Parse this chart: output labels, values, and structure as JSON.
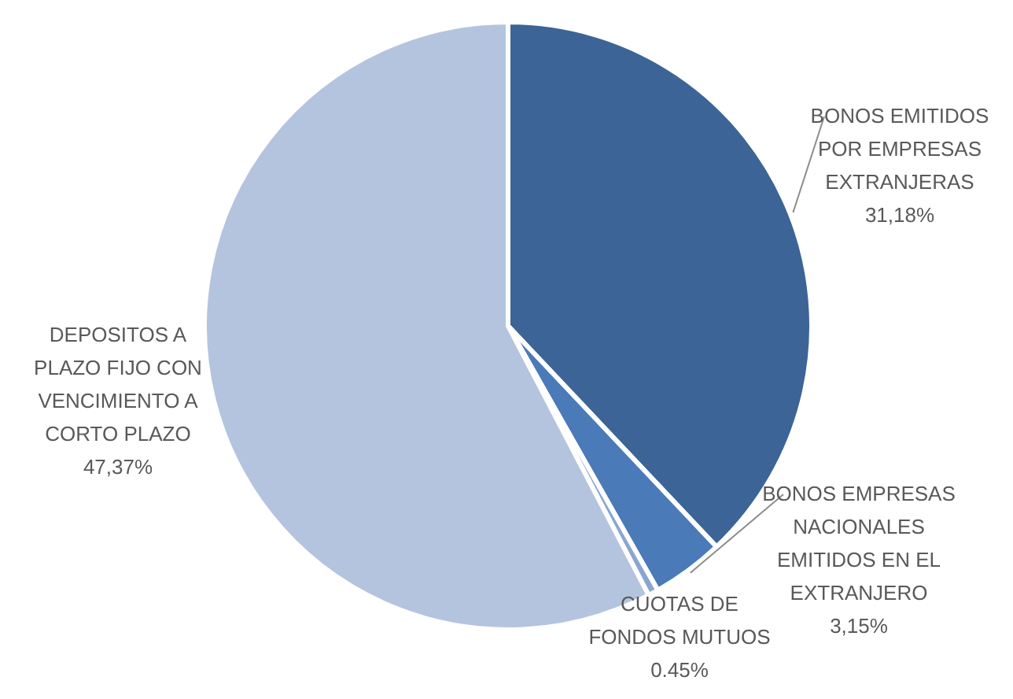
{
  "chart_data": {
    "type": "pie",
    "categories": [
      "BONOS EMITIDOS POR EMPRESAS EXTRANJERAS",
      "BONOS EMPRESAS NACIONALES EMITIDOS EN EL EXTRANJERO",
      "CUOTAS DE FONDOS MUTUOS",
      "DEPOSITOS A PLAZO FIJO CON VENCIMIENTO A CORTO PLAZO"
    ],
    "values": [
      31.18,
      3.15,
      0.45,
      47.37
    ],
    "value_labels": [
      "31,18%",
      "3,15%",
      "0.45%",
      "47,37%"
    ],
    "colors": [
      "#3c6496",
      "#4a7ab8",
      "#8aa6d0",
      "#b4c4de"
    ]
  }
}
